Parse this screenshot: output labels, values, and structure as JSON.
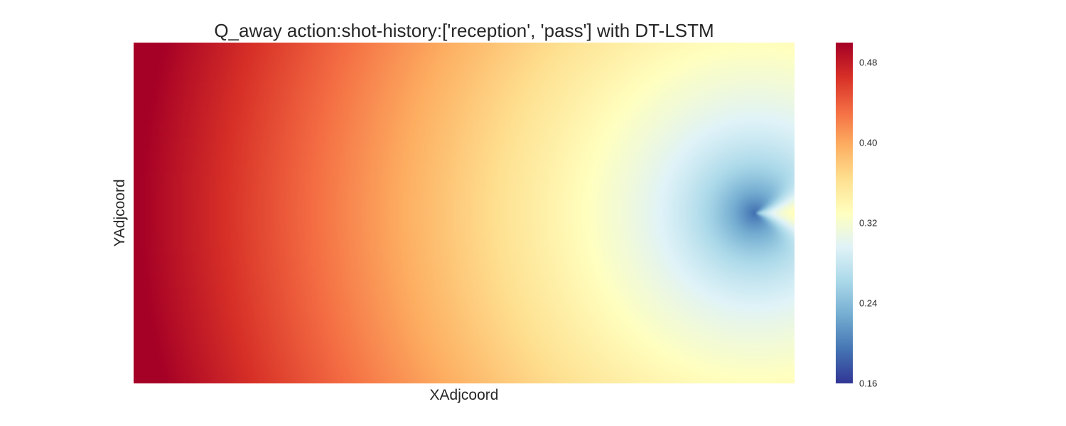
{
  "chart_data": {
    "type": "heatmap",
    "title": "Q_away action:shot-history:['reception', 'pass'] with DT-LSTM",
    "xlabel": "XAdjcoord",
    "ylabel": "YAdjcoord",
    "colormap": "RdYlBu_r",
    "colormap_stops": [
      "#313695",
      "#4575b4",
      "#74add1",
      "#abd9e9",
      "#e0f3f8",
      "#ffffbf",
      "#fee090",
      "#fdae61",
      "#f46d43",
      "#d73027",
      "#a50026"
    ],
    "color_range": [
      0.16,
      0.5
    ],
    "colorbar": {
      "ticks": [
        0.16,
        0.24,
        0.32,
        0.4,
        0.48
      ],
      "tick_labels": [
        "0.16",
        "0.24",
        "0.32",
        "0.40",
        "0.48"
      ]
    },
    "grid": false,
    "value_field": {
      "description": "Q value over pitch coordinates; maximum (~0.50) at the far left edge, decreasing to a minimum (~0.16) just left of the goal point on the right side at mid height, with a small high-value wedge (~0.40) immediately right of it.",
      "x_range": [
        0,
        1
      ],
      "y_range": [
        0,
        1
      ],
      "peak_value": 0.5,
      "minimum_value": 0.16,
      "goal_point": [
        0.94,
        0.5
      ],
      "samples": [
        {
          "x": 0.0,
          "y": 0.5,
          "value": 0.5
        },
        {
          "x": 0.2,
          "y": 0.5,
          "value": 0.44
        },
        {
          "x": 0.4,
          "y": 0.5,
          "value": 0.38
        },
        {
          "x": 0.55,
          "y": 0.5,
          "value": 0.33
        },
        {
          "x": 0.7,
          "y": 0.5,
          "value": 0.27
        },
        {
          "x": 0.85,
          "y": 0.5,
          "value": 0.23
        },
        {
          "x": 0.935,
          "y": 0.5,
          "value": 0.16
        },
        {
          "x": 0.97,
          "y": 0.5,
          "value": 0.4
        },
        {
          "x": 0.8,
          "y": 0.1,
          "value": 0.32
        },
        {
          "x": 1.0,
          "y": 0.9,
          "value": 0.33
        }
      ]
    }
  }
}
